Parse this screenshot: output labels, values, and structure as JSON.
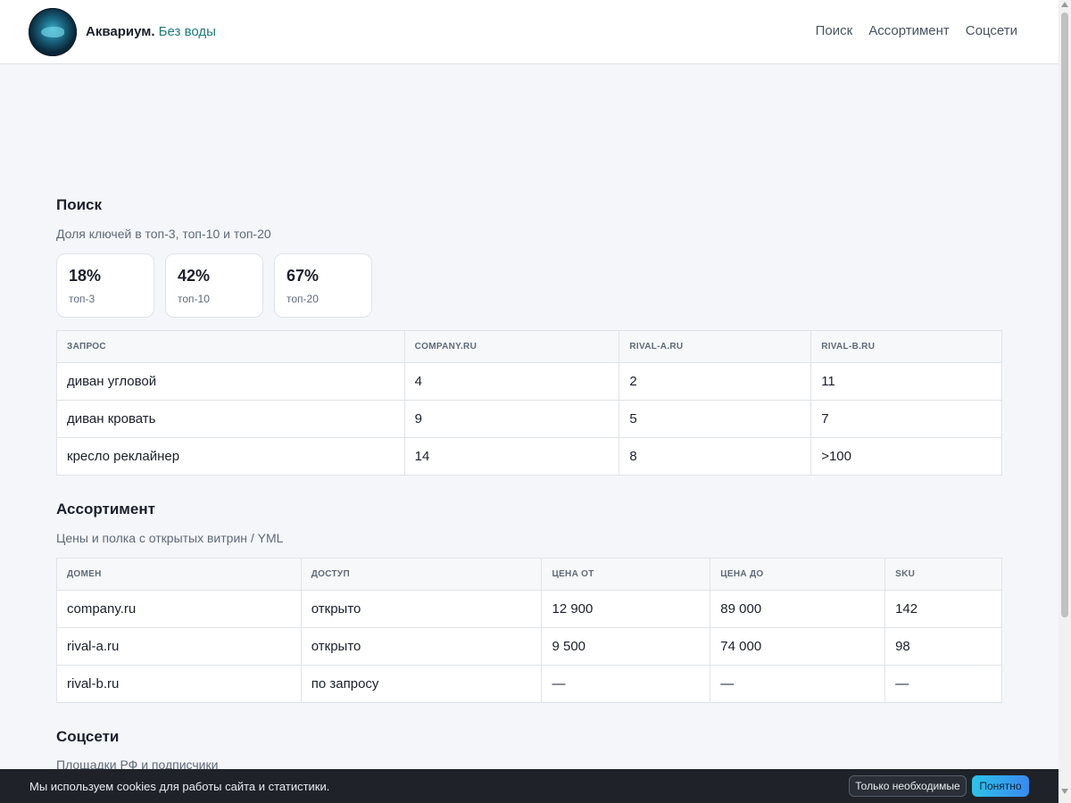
{
  "header": {
    "brand_main": "Аквариум.",
    "brand_accent": "Без воды",
    "nav": [
      "Поиск",
      "Ассортимент",
      "Соцсети"
    ]
  },
  "search": {
    "title": "Поиск",
    "subtitle": "Доля ключей в топ-3, топ-10 и топ-20",
    "kpis": [
      {
        "value": "18%",
        "label": "топ-3"
      },
      {
        "value": "42%",
        "label": "топ-10"
      },
      {
        "value": "67%",
        "label": "топ-20"
      }
    ],
    "table": {
      "headers": [
        "Запрос",
        "company.ru",
        "rival-a.ru",
        "rival-b.ru"
      ],
      "rows": [
        [
          "диван угловой",
          "4",
          "2",
          "11"
        ],
        [
          "диван кровать",
          "9",
          "5",
          "7"
        ],
        [
          "кресло реклайнер",
          "14",
          "8",
          ">100"
        ]
      ]
    }
  },
  "assortment": {
    "title": "Ассортимент",
    "subtitle": "Цены и полка с открытых витрин / YML",
    "table": {
      "headers": [
        "Домен",
        "Доступ",
        "Цена от",
        "Цена до",
        "SKU"
      ],
      "rows": [
        [
          "company.ru",
          "открыто",
          "12 900",
          "89 000",
          "142"
        ],
        [
          "rival-a.ru",
          "открыто",
          "9 500",
          "74 000",
          "98"
        ],
        [
          "rival-b.ru",
          "по запросу",
          "—",
          "—",
          "—"
        ]
      ]
    }
  },
  "social": {
    "title": "Соцсети",
    "subtitle": "Площадки РФ и подписчики"
  },
  "cookie": {
    "text": "Мы используем cookies для работы сайта и статистики.",
    "btn_necessary": "Только необходимые",
    "btn_ok": "Понятно"
  },
  "colors": {
    "accent": "#1b7a78",
    "page_bg": "#f4f6f9",
    "cookie_bg": "#1f2329",
    "primary_button": "#2cc3e8"
  }
}
